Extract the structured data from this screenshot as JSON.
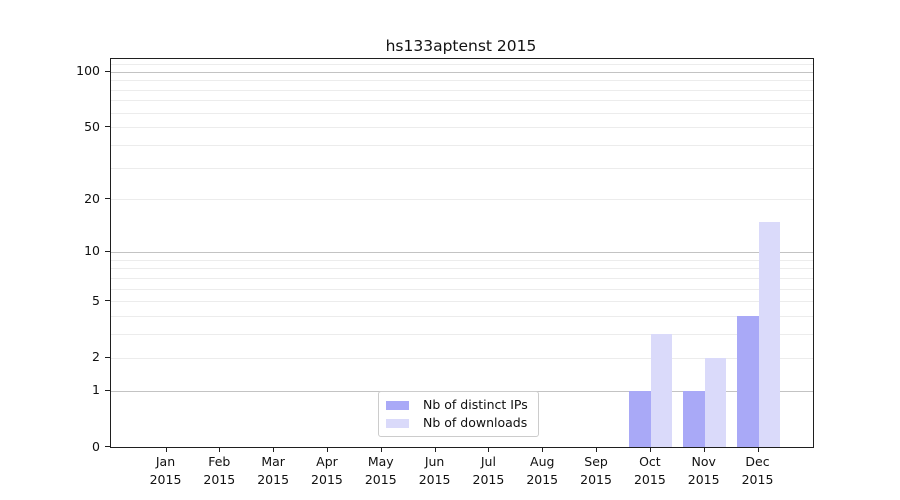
{
  "chart_data": {
    "type": "bar",
    "title": "hs133aptenst 2015",
    "xlabel": "",
    "ylabel": "",
    "categories": [
      "Jan 2015",
      "Feb 2015",
      "Mar 2015",
      "Apr 2015",
      "May 2015",
      "Jun 2015",
      "Jul 2015",
      "Aug 2015",
      "Sep 2015",
      "Oct 2015",
      "Nov 2015",
      "Dec 2015"
    ],
    "series": [
      {
        "name": "Nb of distinct IPs",
        "color": "#a9a9f7",
        "values": [
          0,
          0,
          0,
          0,
          0,
          0,
          0,
          0,
          0,
          1,
          1,
          4
        ]
      },
      {
        "name": "Nb of downloads",
        "color": "#dadafa",
        "values": [
          0,
          0,
          0,
          0,
          0,
          0,
          0,
          0,
          0,
          3,
          2,
          15
        ]
      }
    ],
    "yscale": "log1p",
    "ylim": [
      0,
      117
    ],
    "yticks": [
      0,
      1,
      2,
      5,
      10,
      20,
      50,
      100
    ],
    "ytick_labels": [
      "0",
      "1",
      "2",
      "5",
      "10",
      "20",
      "50",
      "100"
    ],
    "grid": {
      "dark_values": [
        1,
        10,
        100
      ],
      "light_values": [
        2,
        3,
        4,
        5,
        6,
        7,
        8,
        9,
        20,
        30,
        40,
        50,
        60,
        70,
        80,
        90,
        110
      ]
    },
    "legend_position": "lower center"
  },
  "legend": {
    "items": [
      {
        "label": "Nb of distinct IPs",
        "color": "#a9a9f7"
      },
      {
        "label": "Nb of downloads",
        "color": "#dadafa"
      }
    ]
  }
}
